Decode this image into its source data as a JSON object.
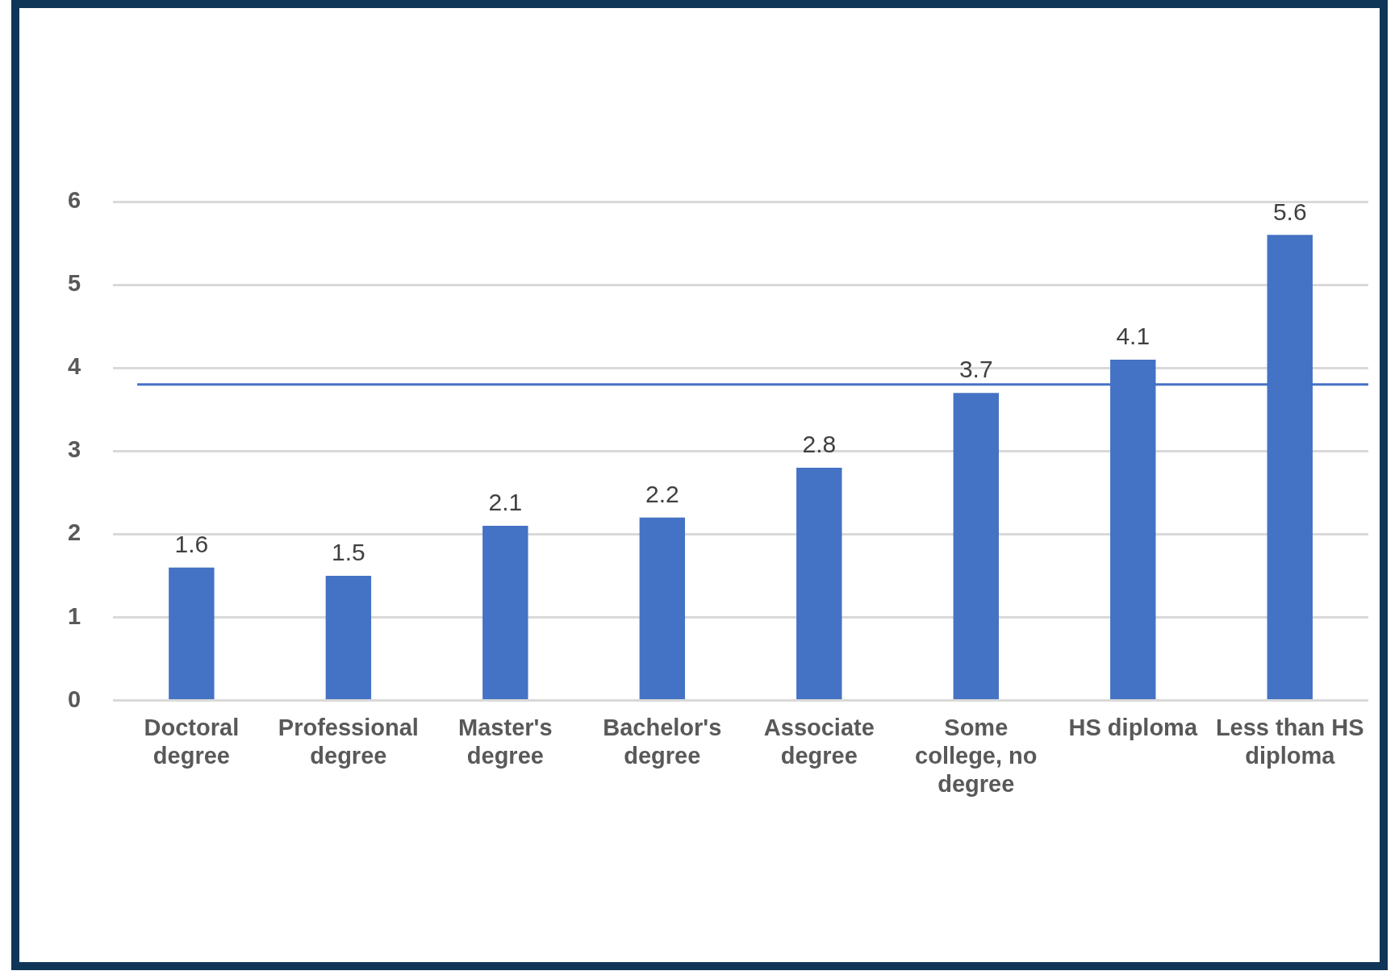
{
  "chart_data": {
    "type": "bar",
    "categories": [
      "Doctoral degree",
      "Professional degree",
      "Master's degree",
      "Bachelor's degree",
      "Associate degree",
      "Some college, no degree",
      "HS diploma",
      "Less than HS diploma"
    ],
    "values": [
      1.6,
      1.5,
      2.1,
      2.2,
      2.8,
      3.7,
      4.1,
      5.6
    ],
    "color": "#4472c4",
    "data_labels": true,
    "ylim": [
      0,
      6
    ],
    "yticks": [
      0,
      1,
      2,
      3,
      4,
      5,
      6
    ],
    "grid": "y",
    "legend": false,
    "ref_lines": [
      {
        "axis": "y",
        "value": 3.8,
        "color": "#4472c4",
        "line_style": "solid"
      }
    ]
  }
}
